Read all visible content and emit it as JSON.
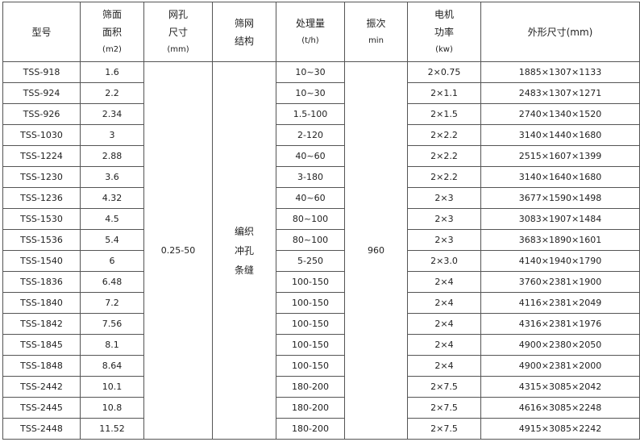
{
  "table": {
    "headers": [
      [
        "型号"
      ],
      [
        "筛面",
        "面积",
        "(m2)"
      ],
      [
        "网孔",
        "尺寸",
        "(mm)"
      ],
      [
        "筛网",
        "结构"
      ],
      [
        "处理量",
        "(t/h)"
      ],
      [
        "振次",
        "min"
      ],
      [
        "电机",
        "功率",
        "(kw)"
      ],
      [
        "外形尺寸(mm)"
      ]
    ],
    "mesh_size": "0.25-50",
    "screen_structure": [
      "编织",
      "冲孔",
      "条缝"
    ],
    "vibration": "960",
    "rows": [
      {
        "model": "TSS-918",
        "area": "1.6",
        "capacity": "10~30",
        "power": "2×0.75",
        "dims": "1885×1307×1133"
      },
      {
        "model": "TSS-924",
        "area": "2.2",
        "capacity": "10~30",
        "power": "2×1.1",
        "dims": "2483×1307×1271"
      },
      {
        "model": "TSS-926",
        "area": "2.34",
        "capacity": "1.5-100",
        "power": "2×1.5",
        "dims": "2740×1340×1520"
      },
      {
        "model": "TSS-1030",
        "area": "3",
        "capacity": "2-120",
        "power": "2×2.2",
        "dims": "3140×1440×1680"
      },
      {
        "model": "TSS-1224",
        "area": "2.88",
        "capacity": "40~60",
        "power": "2×2.2",
        "dims": "2515×1607×1399"
      },
      {
        "model": "TSS-1230",
        "area": "3.6",
        "capacity": "3-180",
        "power": "2×2.2",
        "dims": "3140×1640×1680"
      },
      {
        "model": "TSS-1236",
        "area": "4.32",
        "capacity": "40~60",
        "power": "2×3",
        "dims": "3677×1590×1498"
      },
      {
        "model": "TSS-1530",
        "area": "4.5",
        "capacity": "80~100",
        "power": "2×3",
        "dims": "3083×1907×1484"
      },
      {
        "model": "TSS-1536",
        "area": "5.4",
        "capacity": "80~100",
        "power": "2×3",
        "dims": "3683×1890×1601"
      },
      {
        "model": "TSS-1540",
        "area": "6",
        "capacity": "5-250",
        "power": "2×3.0",
        "dims": "4140×1940×1790"
      },
      {
        "model": "TSS-1836",
        "area": "6.48",
        "capacity": "100-150",
        "power": "2×4",
        "dims": "3760×2381×1900"
      },
      {
        "model": "TSS-1840",
        "area": "7.2",
        "capacity": "100-150",
        "power": "2×4",
        "dims": "4116×2381×2049"
      },
      {
        "model": "TSS-1842",
        "area": "7.56",
        "capacity": "100-150",
        "power": "2×4",
        "dims": "4316×2381×1976"
      },
      {
        "model": "TSS-1845",
        "area": "8.1",
        "capacity": "100-150",
        "power": "2×4",
        "dims": "4900×2380×2050"
      },
      {
        "model": "TSS-1848",
        "area": "8.64",
        "capacity": "100-150",
        "power": "2×4",
        "dims": "4900×2381×2000"
      },
      {
        "model": "TSS-2442",
        "area": "10.1",
        "capacity": "180-200",
        "power": "2×7.5",
        "dims": "4315×3085×2042"
      },
      {
        "model": "TSS-2445",
        "area": "10.8",
        "capacity": "180-200",
        "power": "2×7.5",
        "dims": "4616×3085×2248"
      },
      {
        "model": "TSS-2448",
        "area": "11.52",
        "capacity": "180-200",
        "power": "2×7.5",
        "dims": "4915×3085×2242"
      }
    ]
  }
}
